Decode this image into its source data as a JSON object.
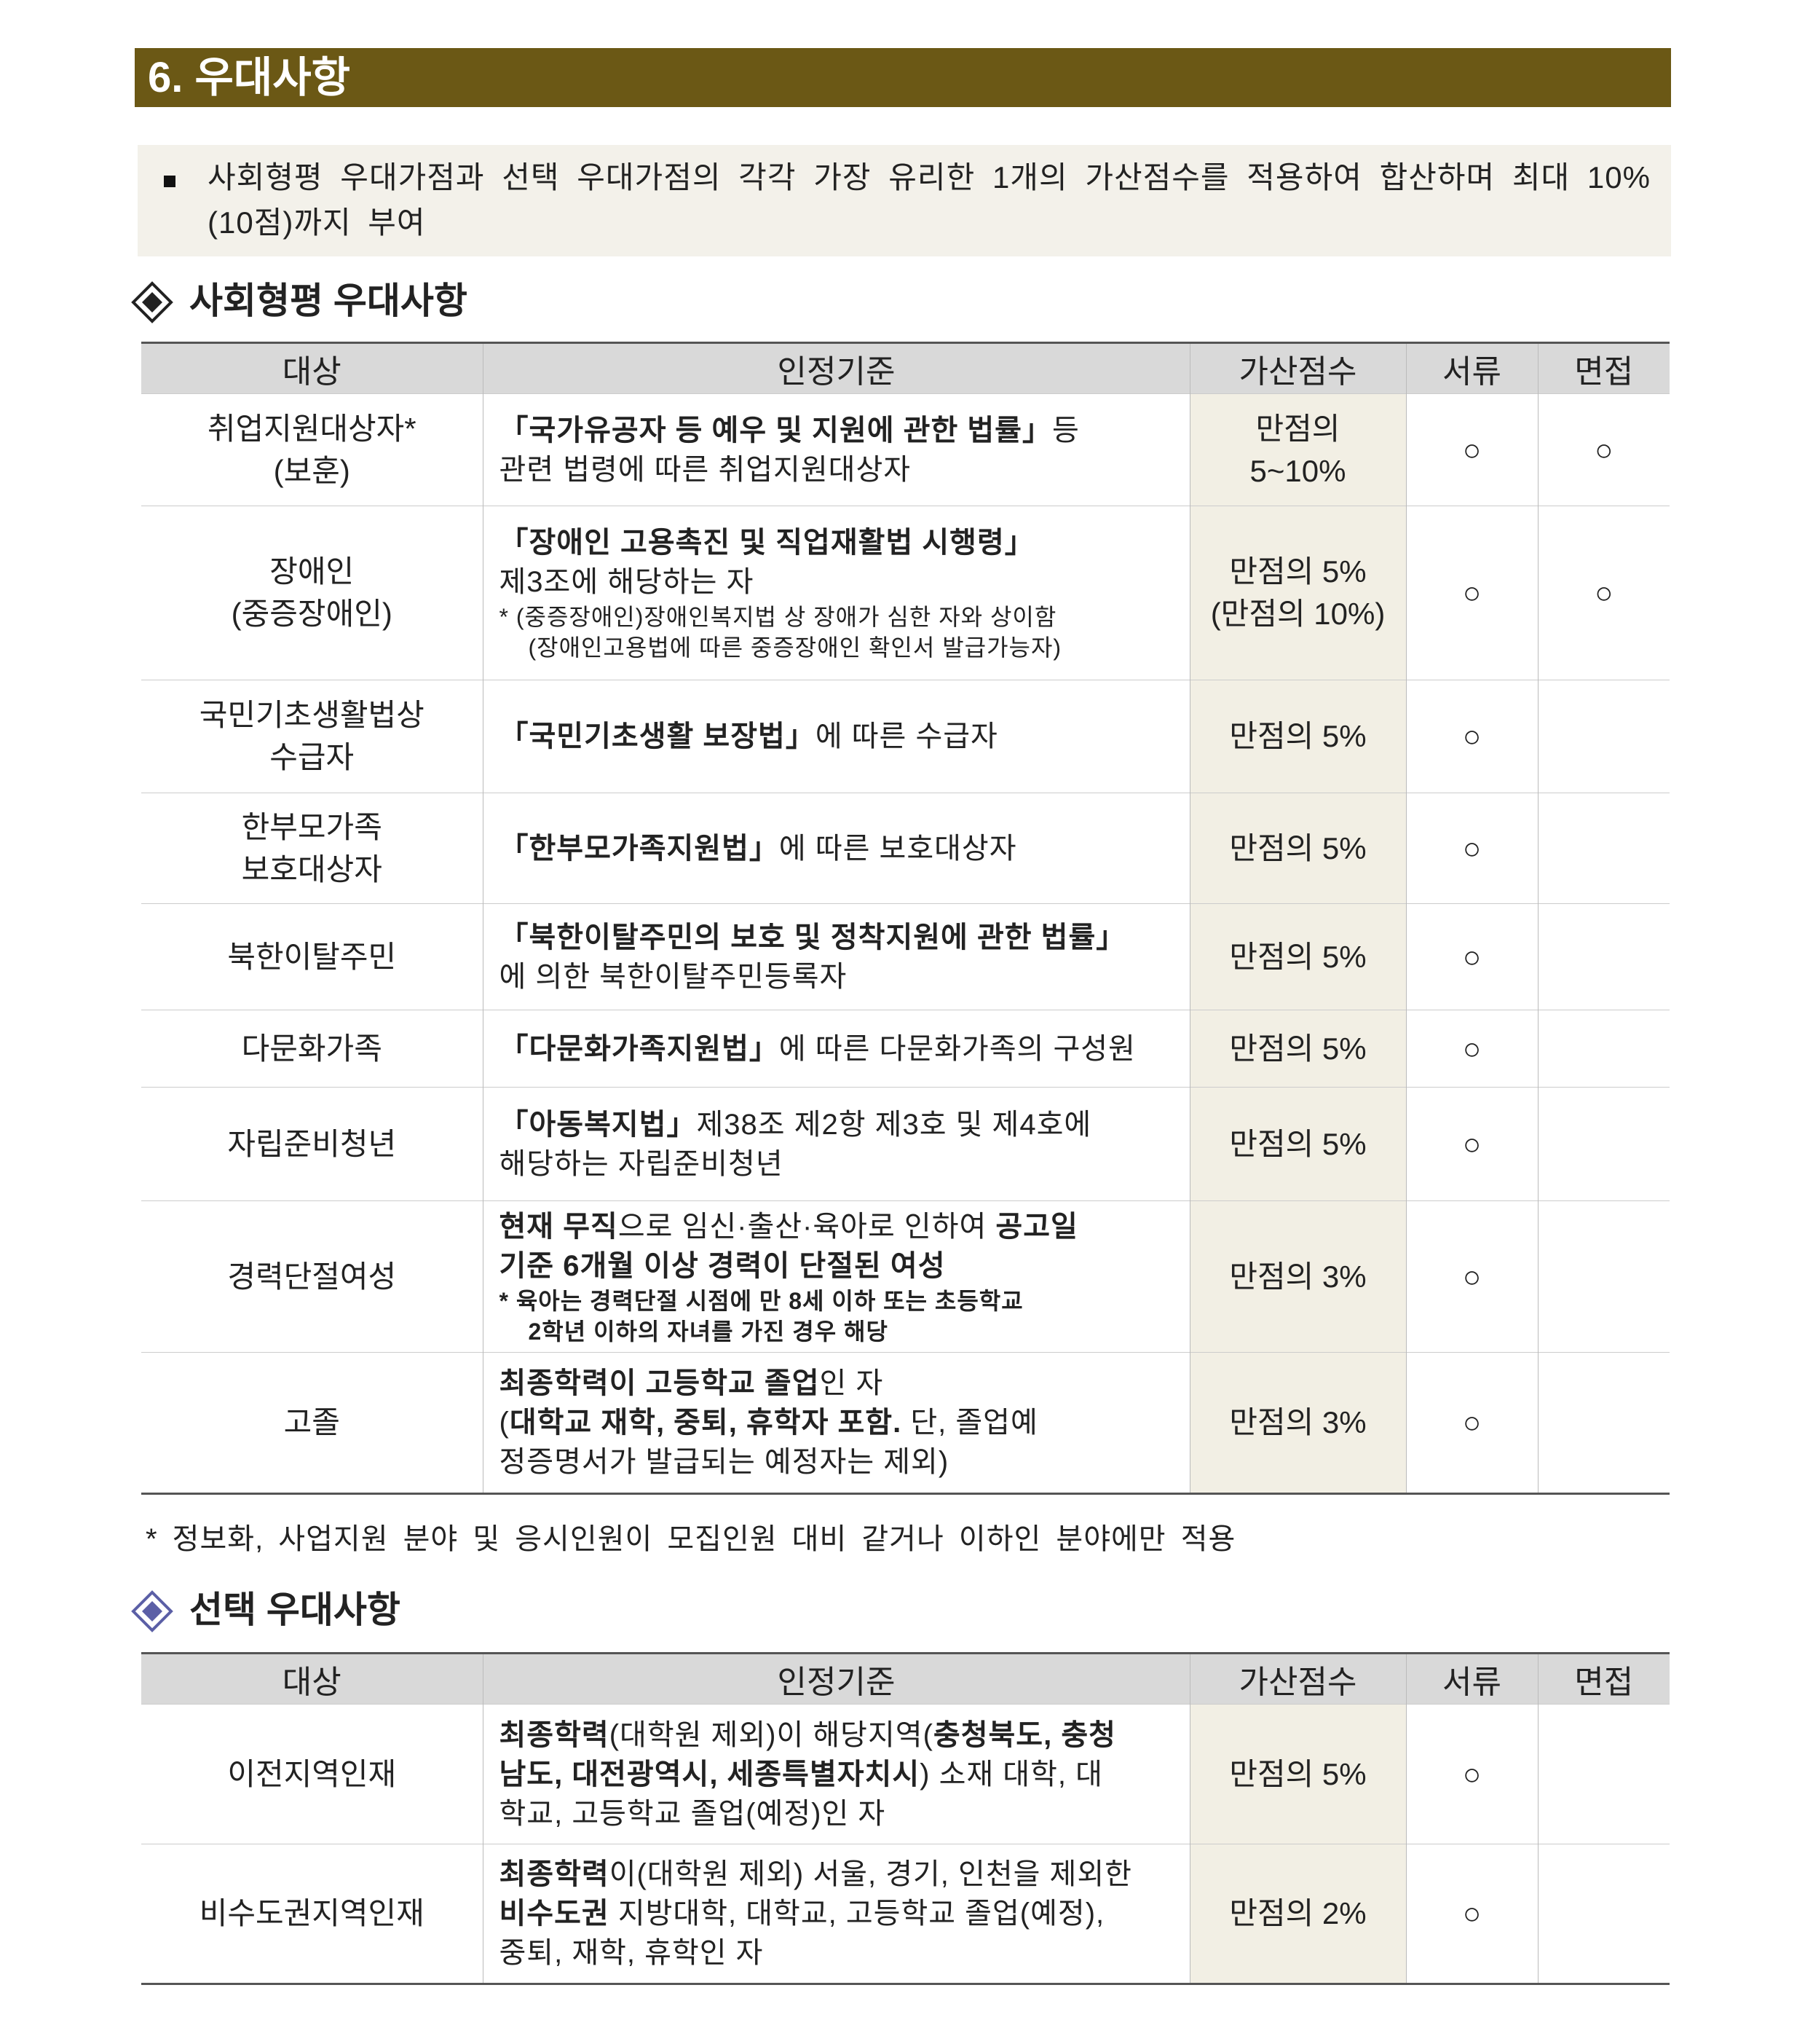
{
  "header": {
    "title": "6. 우대사항"
  },
  "notice": {
    "text": "사회형평 우대가점과 선택 우대가점의 각각 가장 유리한 1개의 가산점수를 적용하여 합산하며 최대 10%(10점)까지 부여"
  },
  "sections": [
    {
      "title": "사회형평 우대사항",
      "columns": [
        "대상",
        "인정기준",
        "가산점수",
        "서류",
        "면접"
      ],
      "rows": [
        {
          "target": [
            "취업지원대상자*",
            "(보훈)"
          ],
          "criteria": [
            [
              {
                "text": "「국가유공자 등 예우 및 지원에 관한 법률」",
                "bold": true
              },
              {
                "text": "등"
              }
            ],
            [
              {
                "text": "관련 법령에 따른 취업지원대상자"
              }
            ]
          ],
          "score": [
            "만점의",
            "5~10%"
          ],
          "doc": "○",
          "interview": "○"
        },
        {
          "target": [
            "장애인",
            "(중증장애인)"
          ],
          "criteria": [
            [
              {
                "text": "「장애인 고용촉진 및 직업재활법 시행령」",
                "bold": true
              }
            ],
            [
              {
                "text": "제3조에 해당하는 자"
              }
            ],
            [
              {
                "text": "* (중증장애인)장애인복지법 상 장애가 심한 자와 상이함",
                "small": true
              }
            ],
            [
              {
                "text": "(장애인고용법에 따른 중증장애인 확인서 발급가능자)",
                "small": true
              }
            ]
          ],
          "score": [
            "만점의 5%",
            "(만점의 10%)"
          ],
          "doc": "○",
          "interview": "○"
        },
        {
          "target": [
            "국민기초생활법상",
            "수급자"
          ],
          "criteria": [
            [
              {
                "text": "「국민기초생활 보장법」",
                "bold": true
              },
              {
                "text": "에 따른 수급자"
              }
            ]
          ],
          "score": [
            "만점의 5%"
          ],
          "doc": "○"
        },
        {
          "target": [
            "한부모가족",
            "보호대상자"
          ],
          "criteria": [
            [
              {
                "text": "「한부모가족지원법」",
                "bold": true
              },
              {
                "text": "에 따른 보호대상자"
              }
            ]
          ],
          "score": [
            "만점의 5%"
          ],
          "doc": "○"
        },
        {
          "target": [
            "북한이탈주민"
          ],
          "criteria": [
            [
              {
                "text": "「북한이탈주민의 보호 및 정착지원에 관한 법률」",
                "bold": true
              }
            ],
            [
              {
                "text": "에 의한 북한이탈주민등록자"
              }
            ]
          ],
          "score": [
            "만점의 5%"
          ],
          "doc": "○"
        },
        {
          "target": [
            "다문화가족"
          ],
          "criteria": [
            [
              {
                "text": "「다문화가족지원법」",
                "bold": true
              },
              {
                "text": "에 따른 다문화가족의 구성원"
              }
            ]
          ],
          "score": [
            "만점의 5%"
          ],
          "doc": "○"
        },
        {
          "target": [
            "자립준비청년"
          ],
          "criteria": [
            [
              {
                "text": "「아동복지법」",
                "bold": true
              },
              {
                "text": "제38조 제2항 제3호 및 제4호에"
              }
            ],
            [
              {
                "text": "해당하는 자립준비청년"
              }
            ]
          ],
          "score": [
            "만점의 5%"
          ],
          "doc": "○"
        },
        {
          "target": [
            "경력단절여성"
          ],
          "criteria": [
            [
              {
                "text": "현재 무직",
                "bold": true
              },
              {
                "text": "으로 임신·출산·육아로 인하여 "
              },
              {
                "text": "공고일",
                "bold": true
              }
            ],
            [
              {
                "text": "기준 6개월 이상 경력이 단절된 여성",
                "bold": true
              }
            ],
            [
              {
                "text": "* 육아는 경력단절 시점에 만 8세 이하 또는 초등학교",
                "bold": true,
                "small": true
              }
            ],
            [
              {
                "text": "2학년 이하의 자녀를 가진 경우 해당",
                "bold": true,
                "small": true
              }
            ]
          ],
          "score": [
            "만점의 3%"
          ],
          "doc": "○"
        },
        {
          "target": [
            "고졸"
          ],
          "criteria": [
            [
              {
                "text": "최종학력이 고등학교 졸업",
                "bold": true
              },
              {
                "text": "인 자"
              }
            ],
            [
              {
                "text": "("
              },
              {
                "text": "대학교 재학, 중퇴, 휴학자 포함.",
                "bold": true
              },
              {
                "text": " 단, 졸업예"
              }
            ],
            [
              {
                "text": "정증명서가 발급되는 예정자는 제외)"
              }
            ]
          ],
          "score": [
            "만점의 3%"
          ],
          "doc": "○"
        }
      ],
      "footnote": "* 정보화, 사업지원 분야 및 응시인원이 모집인원 대비 같거나 이하인 분야에만 적용"
    },
    {
      "title": "선택 우대사항",
      "columns": [
        "대상",
        "인정기준",
        "가산점수",
        "서류",
        "면접"
      ],
      "rows": [
        {
          "target": [
            "이전지역인재"
          ],
          "criteria": [
            [
              {
                "text": "최종학력",
                "bold": true
              },
              {
                "text": "(대학원 제외)이 해당지역("
              },
              {
                "text": "충청북도, 충청",
                "bold": true
              }
            ],
            [
              {
                "text": "남도, 대전광역시, 세종특별자치시",
                "bold": true
              },
              {
                "text": ") 소재 대학, 대"
              }
            ],
            [
              {
                "text": "학교, 고등학교 졸업(예정)인 자"
              }
            ]
          ],
          "score": [
            "만점의 5%"
          ],
          "doc": "○"
        },
        {
          "target": [
            "비수도권지역인재"
          ],
          "criteria": [
            [
              {
                "text": "최종학력",
                "bold": true
              },
              {
                "text": "이(대학원 제외) 서울, 경기, 인천을 제외한"
              }
            ],
            [
              {
                "text": "비수도권",
                "bold": true
              },
              {
                "text": " 지방대학, 대학교, 고등학교 졸업(예정),"
              }
            ],
            [
              {
                "text": "중퇴, 재학, 휴학인 자"
              }
            ]
          ],
          "score": [
            "만점의 2%"
          ],
          "doc": "○"
        }
      ]
    }
  ]
}
